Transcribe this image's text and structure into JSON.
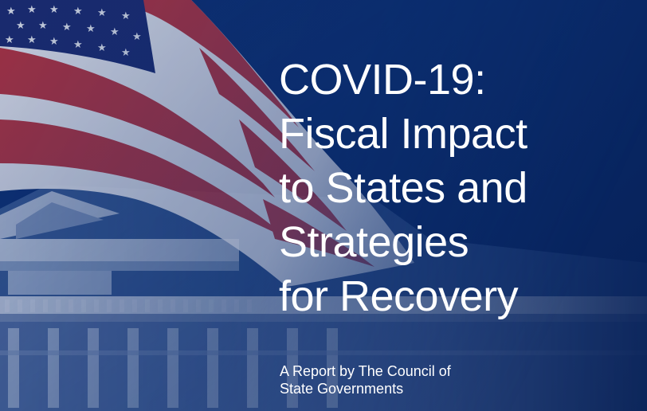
{
  "cover": {
    "title_lines": [
      "COVID-19:",
      "Fiscal Impact",
      "to States and",
      "Strategies",
      "for Recovery"
    ],
    "subtitle_lines": [
      "A Report by The Council of",
      "State Governments"
    ]
  },
  "colors": {
    "background": "#0b2d6e",
    "flag_red": "#b8323c",
    "flag_white": "#e8e8ee",
    "flag_canton": "#1c2a6e",
    "text": "#ffffff"
  }
}
